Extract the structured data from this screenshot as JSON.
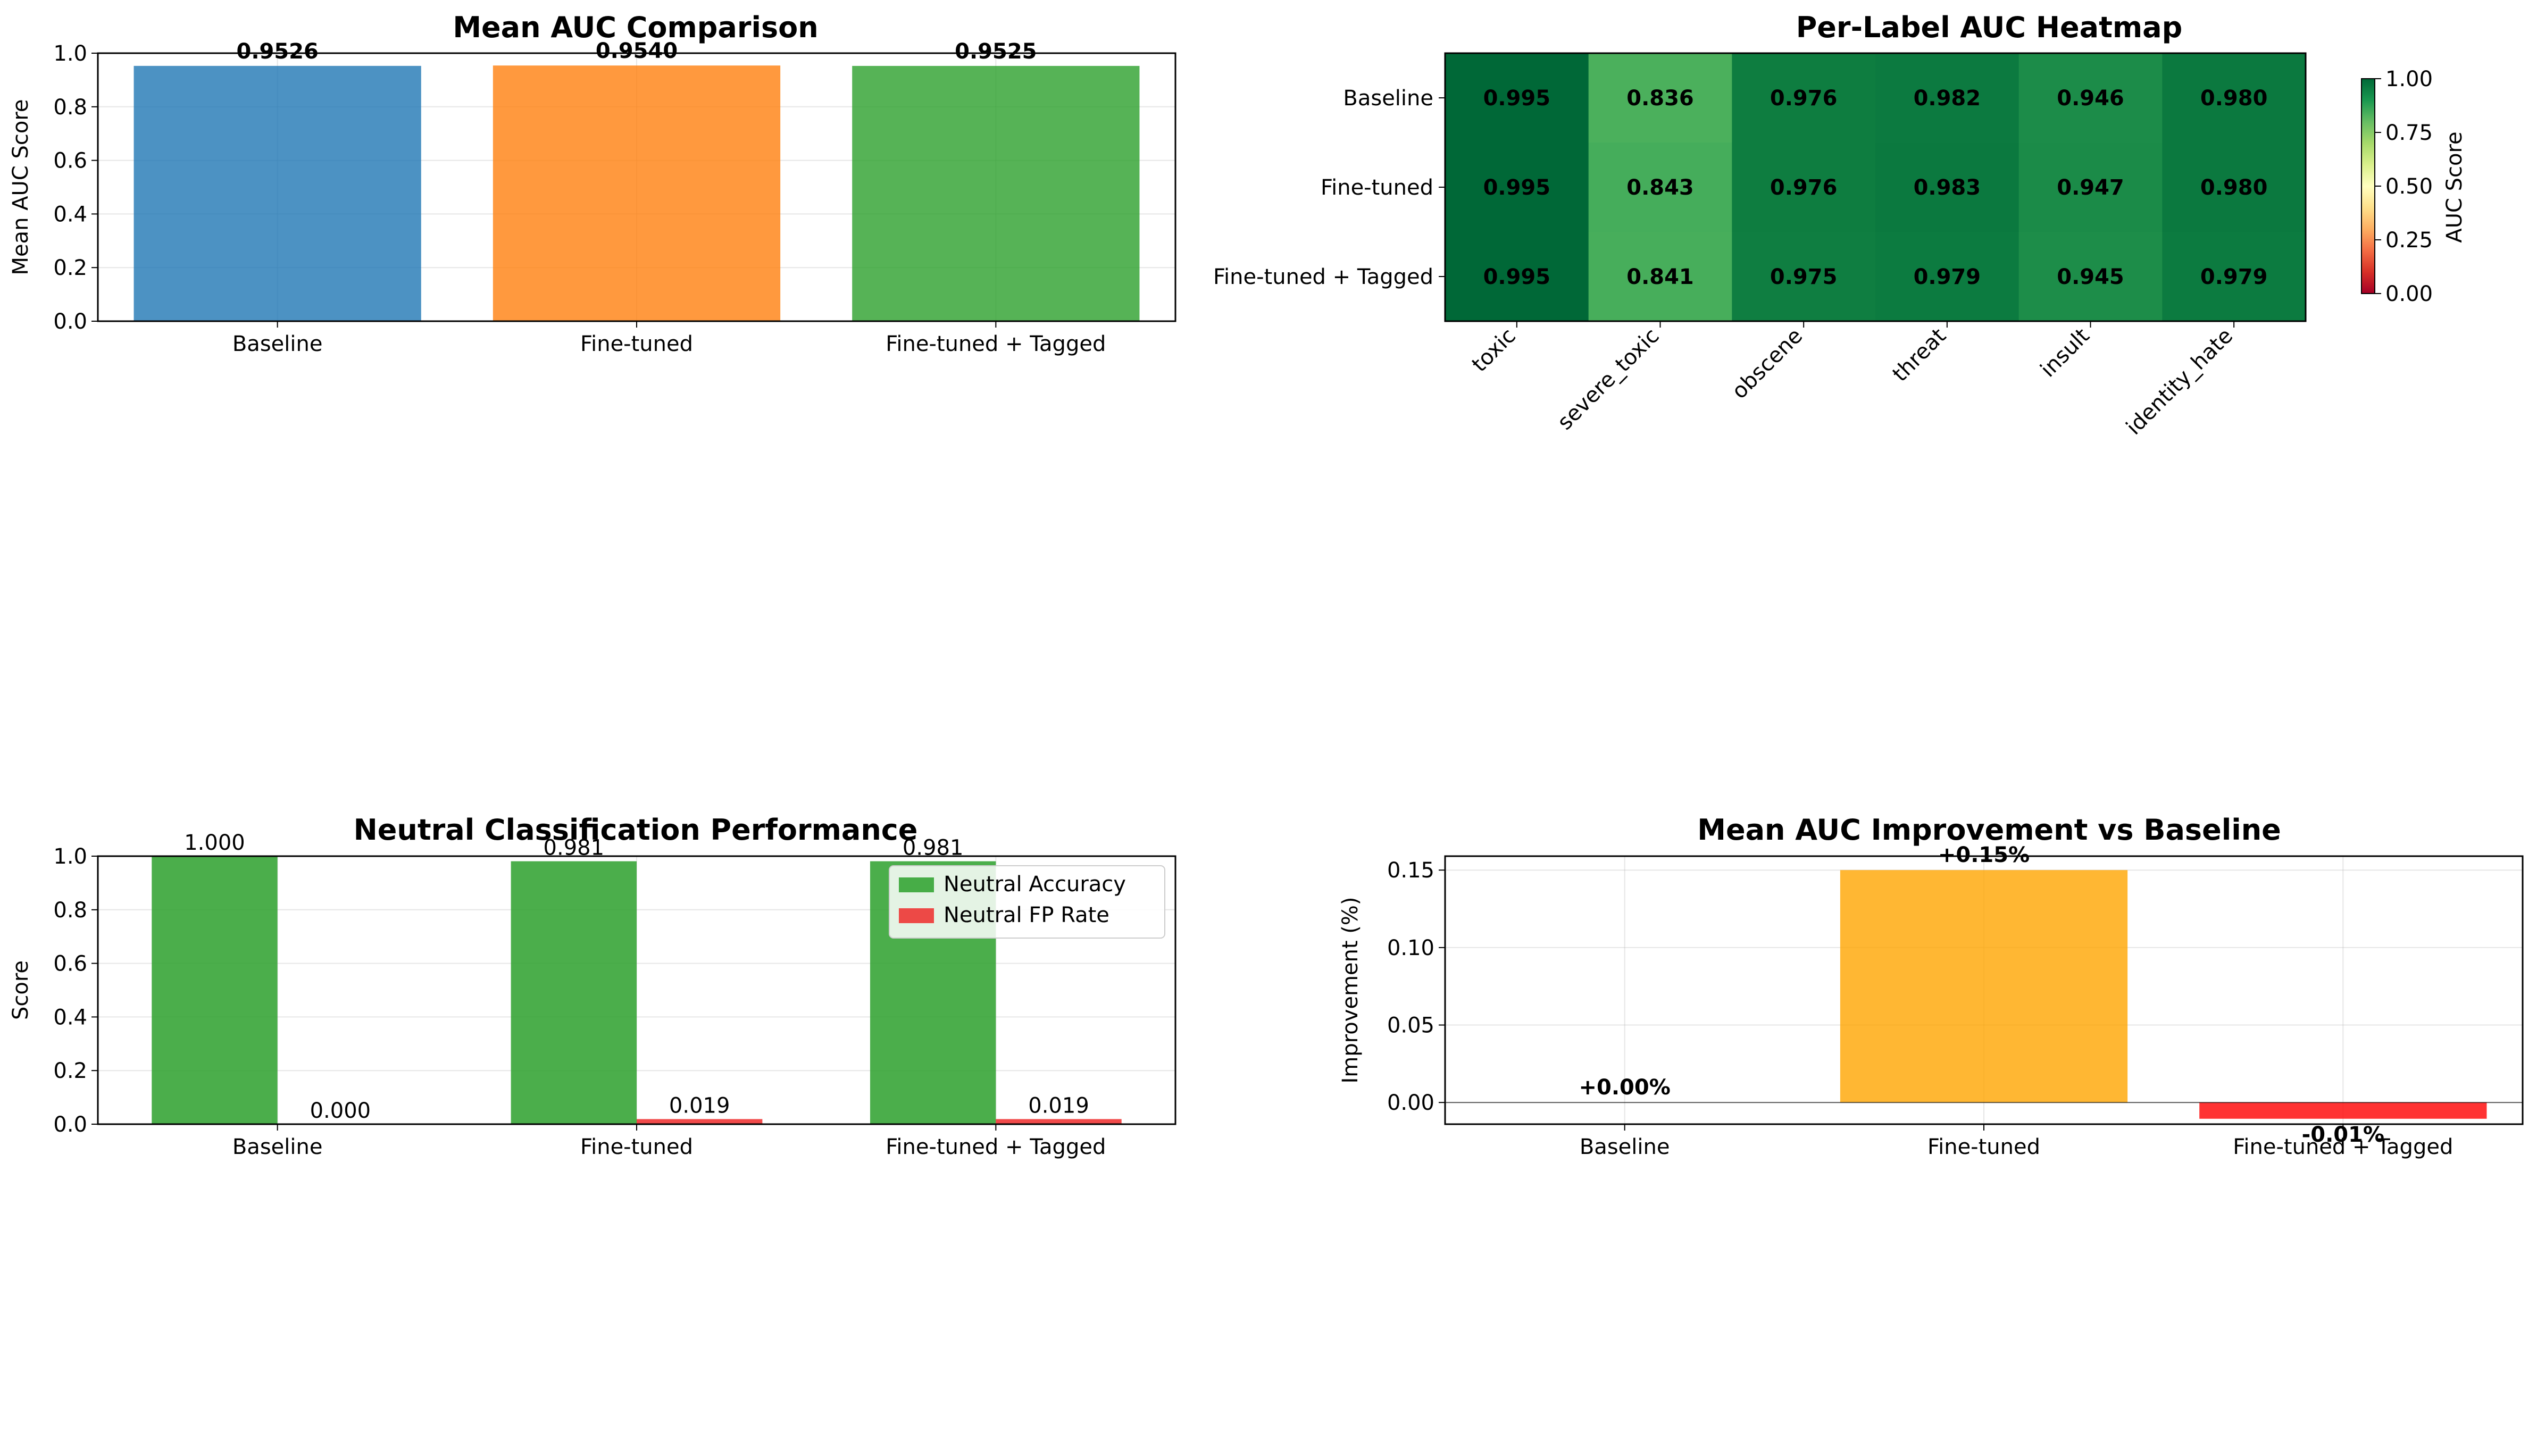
{
  "chart_data": [
    {
      "type": "bar",
      "title": "Mean AUC Comparison",
      "xlabel": "",
      "ylabel": "Mean AUC Score",
      "ylim": [
        0,
        1.0
      ],
      "yticks": [
        "0.0",
        "0.2",
        "0.4",
        "0.6",
        "0.8",
        "1.0"
      ],
      "categories": [
        "Baseline",
        "Fine-tuned",
        "Fine-tuned + Tagged"
      ],
      "values": [
        0.9526,
        0.954,
        0.9525
      ],
      "value_labels": [
        "0.9526",
        "0.9540",
        "0.9525"
      ],
      "colors": [
        "#1f77b4",
        "#ff7f0e",
        "#2ca02c"
      ],
      "grid": true
    },
    {
      "type": "heatmap",
      "title": "Per-Label AUC Heatmap",
      "rows": [
        "Baseline",
        "Fine-tuned",
        "Fine-tuned + Tagged"
      ],
      "columns": [
        "toxic",
        "severe_toxic",
        "obscene",
        "threat",
        "insult",
        "identity_hate"
      ],
      "values": [
        [
          0.995,
          0.836,
          0.976,
          0.982,
          0.946,
          0.98
        ],
        [
          0.995,
          0.843,
          0.976,
          0.983,
          0.947,
          0.98
        ],
        [
          0.995,
          0.841,
          0.975,
          0.979,
          0.945,
          0.979
        ]
      ],
      "cell_labels": [
        [
          "0.995",
          "0.836",
          "0.976",
          "0.982",
          "0.946",
          "0.980"
        ],
        [
          "0.995",
          "0.843",
          "0.976",
          "0.983",
          "0.947",
          "0.980"
        ],
        [
          "0.995",
          "0.841",
          "0.975",
          "0.979",
          "0.945",
          "0.979"
        ]
      ],
      "cell_colors": [
        [
          "#006837",
          "#4bb05c",
          "#0e7d40",
          "#0c7a40",
          "#1c8c49",
          "#0b793f"
        ],
        [
          "#006837",
          "#45ad5b",
          "#0e7d40",
          "#0b793f",
          "#1b8b48",
          "#0b793f"
        ],
        [
          "#006837",
          "#47ae5b",
          "#0f7e41",
          "#0c7b40",
          "#1d8d49",
          "#0c7b40"
        ]
      ],
      "colorbar": {
        "label": "AUC Score",
        "range": [
          0,
          1.0
        ],
        "ticks": [
          "0.00",
          "0.25",
          "0.50",
          "0.75",
          "1.00"
        ],
        "colormap": "RdYlGn"
      }
    },
    {
      "type": "bar",
      "title": "Neutral Classification Performance",
      "xlabel": "",
      "ylabel": "Score",
      "ylim": [
        0,
        1.0
      ],
      "yticks": [
        "0.0",
        "0.2",
        "0.4",
        "0.6",
        "0.8",
        "1.0"
      ],
      "categories": [
        "Baseline",
        "Fine-tuned",
        "Fine-tuned + Tagged"
      ],
      "series": [
        {
          "name": "Neutral Accuracy",
          "color": "#2ca02c",
          "values": [
            1.0,
            0.981,
            0.981
          ],
          "labels": [
            "1.000",
            "0.981",
            "0.981"
          ]
        },
        {
          "name": "Neutral FP Rate",
          "color": "#ee2a2a",
          "values": [
            0.0,
            0.019,
            0.019
          ],
          "labels": [
            "0.000",
            "0.019",
            "0.019"
          ]
        }
      ],
      "legend": "top-right",
      "grid": true
    },
    {
      "type": "bar",
      "title": "Mean AUC Improvement vs Baseline",
      "xlabel": "",
      "ylabel": "Improvement (%)",
      "ylim": [
        -0.014,
        0.159
      ],
      "yticks": [
        {
          "value": 0.0,
          "label": "0.00"
        },
        {
          "value": 0.05,
          "label": "0.05"
        },
        {
          "value": 0.1,
          "label": "0.10"
        },
        {
          "value": 0.15,
          "label": "0.15"
        }
      ],
      "categories": [
        "Baseline",
        "Fine-tuned",
        "Fine-tuned + Tagged"
      ],
      "values": [
        0.0,
        0.15,
        -0.0105
      ],
      "value_labels": [
        "+0.00%",
        "+0.15%",
        "-0.01%"
      ],
      "colors": [
        "#d3d3d3",
        "#ffa500",
        "#ff0000"
      ],
      "grid": true
    }
  ]
}
